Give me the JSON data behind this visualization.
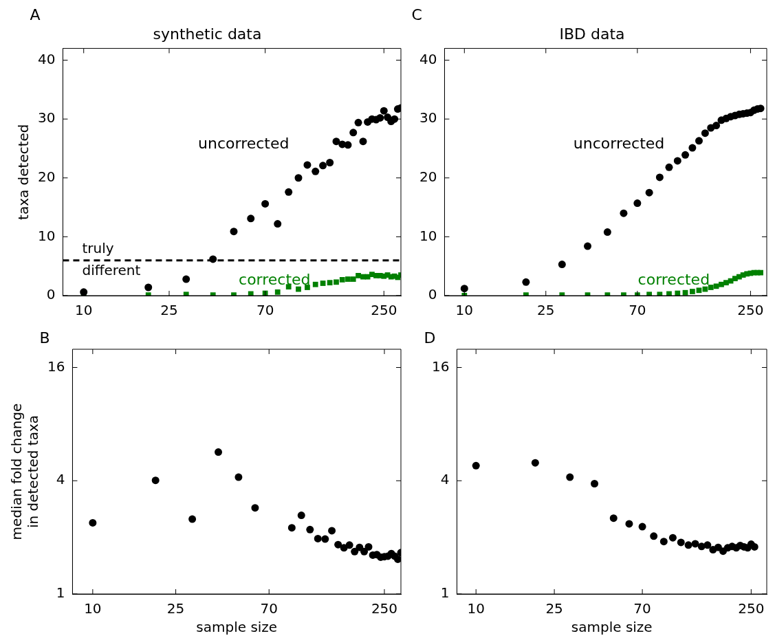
{
  "chart_data": [
    {
      "type": "scatter",
      "title": "synthetic data",
      "ylabel": "taxa detected",
      "annotations": [
        "A"
      ],
      "log": "x",
      "xlim": [
        8,
        300
      ],
      "xticks": [
        10,
        25,
        70,
        250
      ],
      "ylim": [
        0,
        42
      ],
      "yticks": [
        0,
        10,
        20,
        30,
        40
      ],
      "x": [
        10,
        20,
        30,
        40,
        50,
        60,
        70,
        80,
        90,
        100,
        110,
        120,
        130,
        140,
        150,
        160,
        170,
        180,
        190,
        200,
        210,
        220,
        230,
        240,
        250,
        260,
        270,
        280,
        290,
        300
      ],
      "series": [
        {
          "name": "uncorrected",
          "color": "#000000",
          "marker": "circle",
          "values": [
            0.6,
            1.4,
            2.8,
            6.2,
            10.9,
            13.1,
            15.6,
            12.2,
            17.6,
            20.0,
            22.2,
            21.1,
            22.1,
            22.6,
            26.2,
            25.7,
            25.6,
            27.7,
            29.4,
            26.2,
            29.5,
            30.0,
            29.9,
            30.2,
            31.4,
            30.3,
            29.6,
            30.0,
            31.7,
            31.9
          ]
        },
        {
          "name": "corrected",
          "color": "#008000",
          "marker": "square",
          "values": [
            0,
            0.1,
            0.2,
            0.1,
            0.1,
            0.3,
            0.4,
            0.6,
            1.5,
            1.1,
            1.4,
            1.9,
            2.1,
            2.2,
            2.3,
            2.7,
            2.8,
            2.8,
            3.4,
            3.2,
            3.2,
            3.6,
            3.4,
            3.4,
            3.3,
            3.5,
            3.2,
            3.3,
            3.1,
            3.5
          ]
        }
      ],
      "ref_lines": [
        {
          "axis": "y",
          "value": 6,
          "label": "truly different",
          "color": "#000000",
          "line_style": "dashed"
        }
      ]
    },
    {
      "type": "scatter",
      "title": "IBD data",
      "annotations": [
        "C"
      ],
      "log": "x",
      "xlim": [
        8,
        300
      ],
      "xticks": [
        10,
        25,
        70,
        250
      ],
      "ylim": [
        0,
        42
      ],
      "yticks": [
        0,
        10,
        20,
        30,
        40
      ],
      "x": [
        10,
        20,
        30,
        40,
        50,
        60,
        70,
        80,
        90,
        100,
        110,
        120,
        130,
        140,
        150,
        160,
        170,
        180,
        190,
        200,
        210,
        220,
        230,
        240,
        250,
        260,
        270,
        280
      ],
      "series": [
        {
          "name": "uncorrected",
          "color": "#000000",
          "marker": "circle",
          "values": [
            1.2,
            2.3,
            5.3,
            8.4,
            10.8,
            14.0,
            15.7,
            17.5,
            20.1,
            21.8,
            22.9,
            23.9,
            25.1,
            26.3,
            27.6,
            28.5,
            28.9,
            29.8,
            30.1,
            30.4,
            30.6,
            30.8,
            30.9,
            31.0,
            31.1,
            31.5,
            31.7,
            31.8
          ]
        },
        {
          "name": "corrected",
          "color": "#008000",
          "marker": "square",
          "values": [
            0,
            0.1,
            0.1,
            0.1,
            0.1,
            0.1,
            0.1,
            0.2,
            0.2,
            0.3,
            0.4,
            0.5,
            0.7,
            0.9,
            1.1,
            1.4,
            1.6,
            1.9,
            2.2,
            2.5,
            2.9,
            3.2,
            3.5,
            3.7,
            3.8,
            3.9,
            3.9,
            3.9
          ]
        }
      ]
    },
    {
      "type": "scatter",
      "xlabel": "sample size",
      "ylabel": "median fold change\nin detected taxa",
      "annotations": [
        "B"
      ],
      "log": "xy",
      "xlim": [
        8,
        300
      ],
      "xticks": [
        10,
        25,
        70,
        250
      ],
      "ylim": [
        1,
        20
      ],
      "yticks": [
        1,
        4,
        16
      ],
      "x": [
        10,
        20,
        30,
        40,
        50,
        60,
        70,
        80,
        90,
        100,
        110,
        120,
        130,
        140,
        150,
        160,
        170,
        180,
        190,
        200,
        210,
        220,
        230,
        240,
        250,
        260,
        270,
        280,
        290,
        300
      ],
      "series": [
        {
          "color": "#000000",
          "marker": "circle",
          "values": [
            2.39,
            4.02,
            2.5,
            5.68,
            4.18,
            2.87,
            null,
            null,
            2.25,
            2.62,
            2.2,
            1.97,
            1.96,
            2.17,
            1.83,
            1.76,
            1.82,
            1.68,
            1.77,
            1.68,
            1.78,
            1.61,
            1.62,
            1.57,
            1.58,
            1.59,
            1.64,
            1.59,
            1.53,
            1.66
          ]
        }
      ]
    },
    {
      "type": "scatter",
      "xlabel": "sample size",
      "annotations": [
        "D"
      ],
      "log": "xy",
      "xlim": [
        8,
        300
      ],
      "xticks": [
        10,
        25,
        70,
        250
      ],
      "ylim": [
        1,
        20
      ],
      "yticks": [
        1,
        4,
        16
      ],
      "x": [
        10,
        20,
        30,
        40,
        50,
        60,
        70,
        80,
        90,
        100,
        110,
        120,
        130,
        140,
        150,
        160,
        170,
        180,
        190,
        200,
        210,
        220,
        230,
        240,
        250,
        260
      ],
      "series": [
        {
          "color": "#000000",
          "marker": "circle",
          "values": [
            4.81,
            4.98,
            4.18,
            3.86,
            2.53,
            2.36,
            2.28,
            2.03,
            1.9,
            1.99,
            1.88,
            1.82,
            1.85,
            1.79,
            1.82,
            1.72,
            1.77,
            1.69,
            1.76,
            1.79,
            1.76,
            1.81,
            1.78,
            1.76,
            1.84,
            1.78
          ]
        }
      ]
    }
  ]
}
